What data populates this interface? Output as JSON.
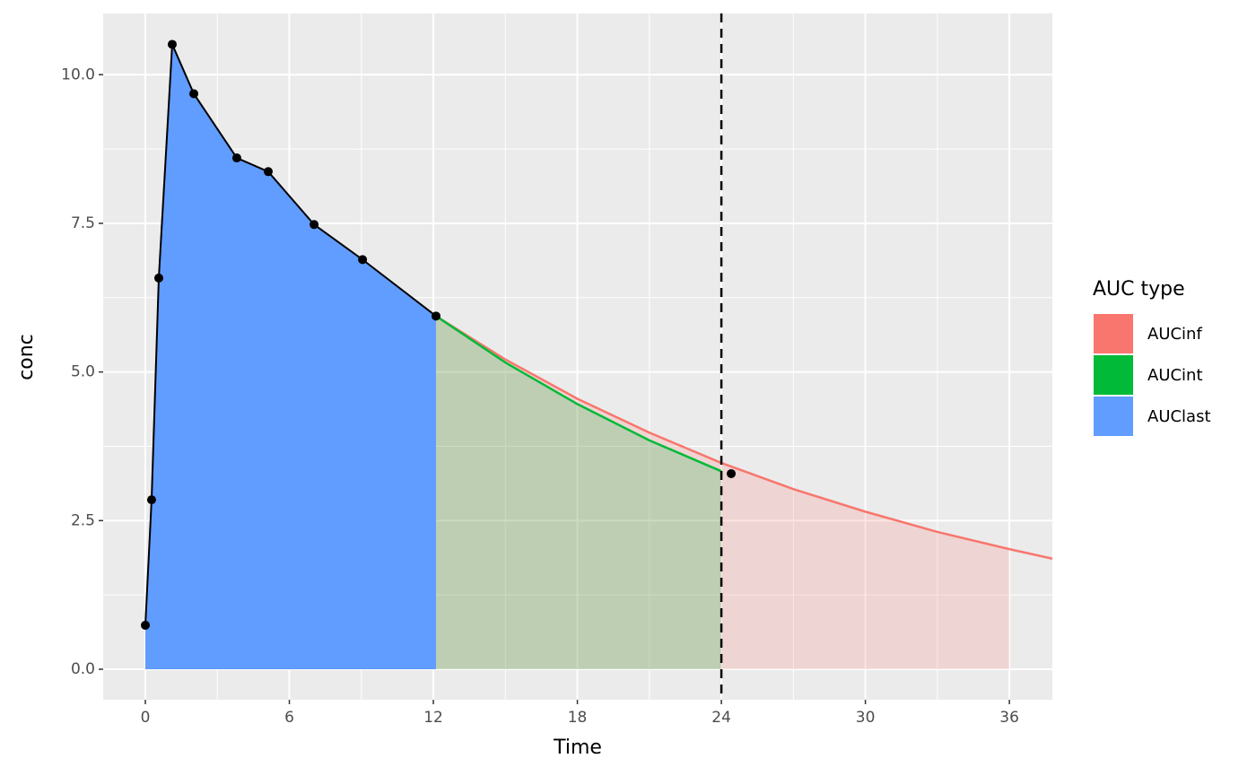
{
  "chart_data": {
    "type": "auc",
    "xlabel": "Time",
    "ylabel": "conc",
    "xlim": [
      -1.757,
      37.79
    ],
    "ylim": [
      -0.513,
      11.03
    ],
    "xticks": [
      0,
      6,
      12,
      18,
      24,
      30,
      36
    ],
    "yticks": [
      {
        "value": 0,
        "label": "0.0"
      },
      2.5,
      {
        "value": 5,
        "label": "5.0"
      },
      7.5,
      {
        "value": 10,
        "label": "10.0"
      }
    ],
    "grid": true,
    "vline": 24,
    "legend_title": "AUC type",
    "legend": "right",
    "series": [
      {
        "name": "AUCinf",
        "color": "#F8766D",
        "fill_opacity": 0.2,
        "fill_until": 36,
        "x": [
          12.11,
          15,
          18,
          21,
          24,
          27,
          30,
          33,
          36,
          37.79
        ],
        "values": [
          5.94,
          5.21,
          4.55,
          3.98,
          3.47,
          3.03,
          2.65,
          2.31,
          2.02,
          1.86
        ]
      },
      {
        "name": "AUCint",
        "color": "#00BA38",
        "fill_opacity": 0.2,
        "x": [
          12.11,
          15,
          18,
          21,
          24
        ],
        "values": [
          5.94,
          5.16,
          4.46,
          3.85,
          3.33
        ]
      },
      {
        "name": "AUClast",
        "color": "#619CFF",
        "fill_opacity": 1,
        "x": [
          0,
          0.26,
          0.56,
          1.12,
          2.02,
          3.81,
          5.12,
          7.03,
          9.05,
          12.11
        ],
        "values": [
          0.74,
          2.85,
          6.58,
          10.51,
          9.68,
          8.6,
          8.37,
          7.48,
          6.89,
          5.94
        ]
      }
    ],
    "points": {
      "color": "#000000",
      "x": [
        0,
        0.26,
        0.56,
        1.12,
        2.02,
        3.81,
        5.12,
        7.03,
        9.05,
        12.11,
        24.41
      ],
      "values": [
        0.74,
        2.85,
        6.58,
        10.51,
        9.68,
        8.6,
        8.37,
        7.48,
        6.89,
        5.94,
        3.29
      ]
    }
  }
}
